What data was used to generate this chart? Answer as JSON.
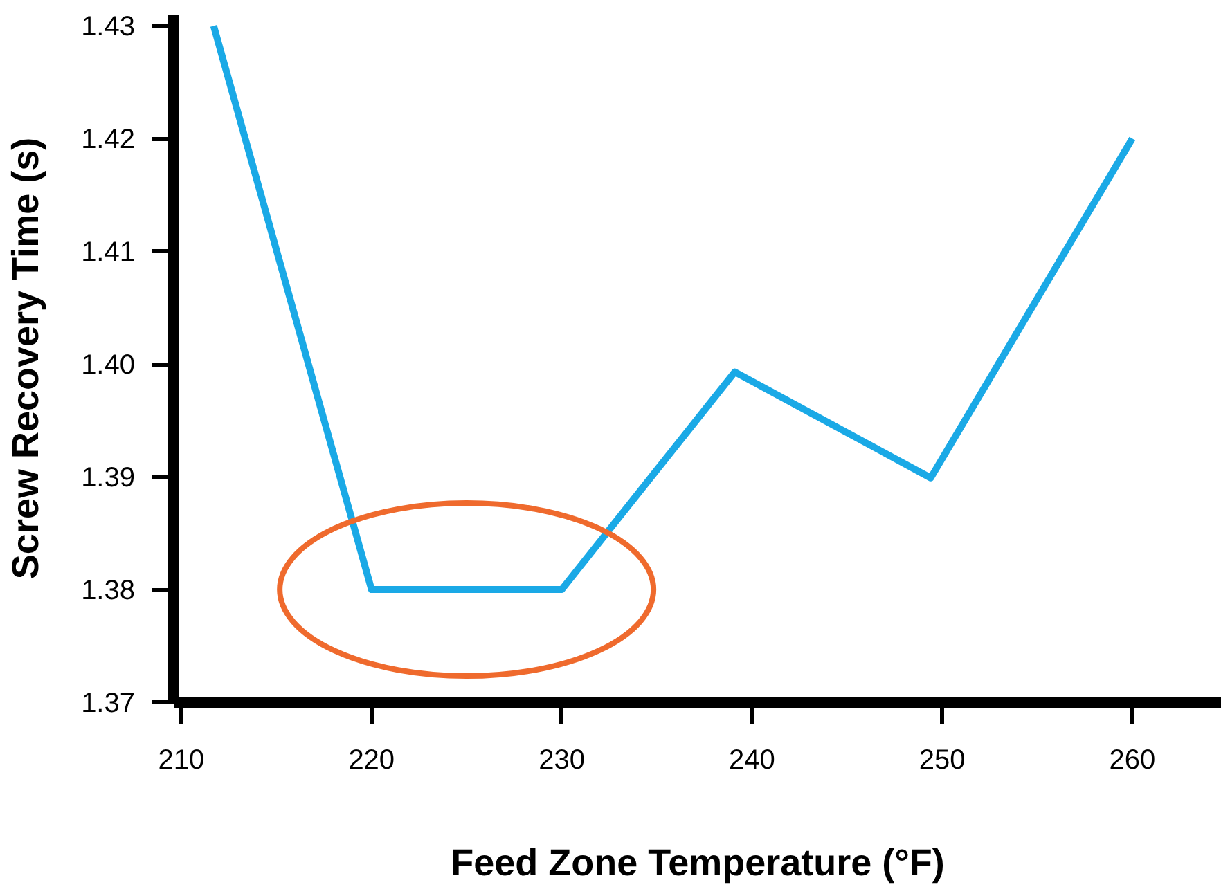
{
  "chart_data": {
    "type": "line",
    "xlabel": "Feed Zone Temperature (°F)",
    "ylabel": "Screw Recovery Time (s)",
    "x": [
      211.7,
      220,
      230,
      239.1,
      249.4,
      260
    ],
    "series": [
      {
        "color": "#1aa9e6",
        "values": [
          1.43,
          1.38,
          1.38,
          1.3993,
          1.3899,
          1.42
        ]
      }
    ],
    "xlim": [
      209.6,
      264.7
    ],
    "ylim": [
      1.37,
      1.431
    ],
    "xticks": [
      210,
      220,
      230,
      240,
      250,
      260
    ],
    "yticks": [
      {
        "value": 1.37,
        "label": "1.37"
      },
      {
        "value": 1.38,
        "label": "1.38"
      },
      {
        "value": 1.39,
        "label": "1.39"
      },
      {
        "value": 1.4,
        "label": "1.40"
      },
      {
        "value": 1.41,
        "label": "1.41"
      },
      {
        "value": 1.42,
        "label": "1.42"
      },
      {
        "value": 1.43,
        "label": "1.43"
      }
    ],
    "grid": false,
    "marker": "none",
    "line_style": "solid"
  }
}
